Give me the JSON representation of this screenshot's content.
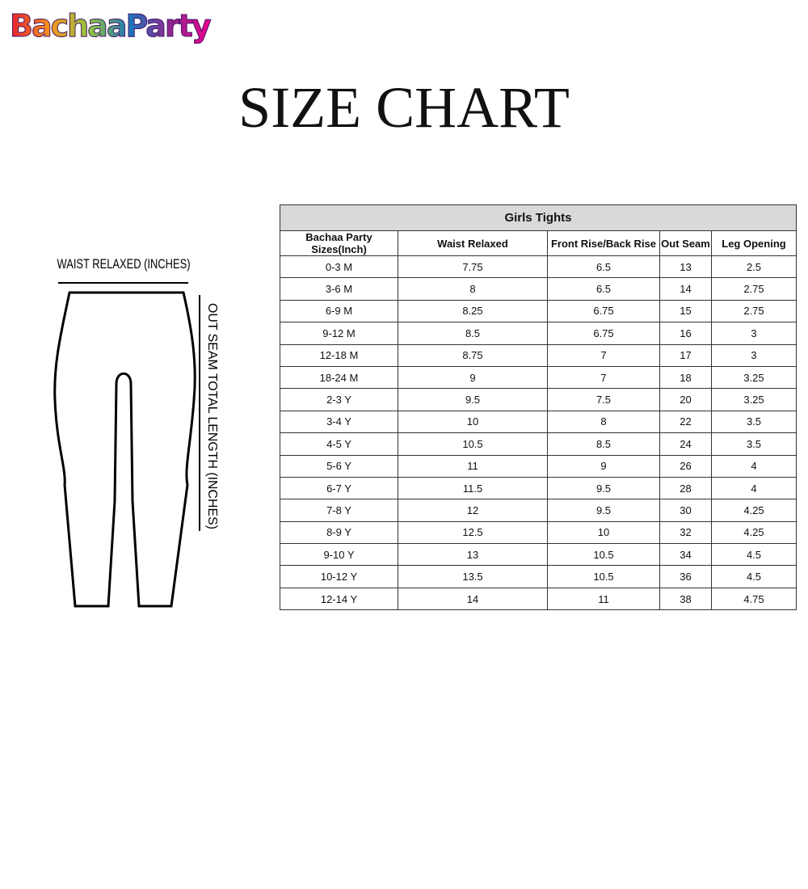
{
  "logo": "BachaaParty",
  "title": "SIZE CHART",
  "diagram": {
    "waist_label": "WAIST RELAXED (INCHES)",
    "length_label": "OUT SEAM TOTAL LENGTH (INCHES)"
  },
  "table": {
    "title": "Girls Tights",
    "headers": [
      "Bachaa Party Sizes(Inch)",
      "Waist Relaxed",
      "Front Rise/Back Rise",
      "Out Seam",
      "Leg Opening"
    ],
    "rows": [
      [
        "0-3 M",
        7.75,
        6.5,
        13,
        2.5
      ],
      [
        "3-6 M",
        8,
        6.5,
        14,
        2.75
      ],
      [
        "6-9 M",
        8.25,
        6.75,
        15,
        2.75
      ],
      [
        "9-12 M",
        8.5,
        6.75,
        16,
        3
      ],
      [
        "12-18 M",
        8.75,
        7,
        17,
        3
      ],
      [
        "18-24 M",
        9,
        7,
        18,
        3.25
      ],
      [
        "2-3 Y",
        9.5,
        7.5,
        20,
        3.25
      ],
      [
        "3-4 Y",
        10,
        8,
        22,
        3.5
      ],
      [
        "4-5 Y",
        10.5,
        8.5,
        24,
        3.5
      ],
      [
        "5-6 Y",
        11,
        9,
        26,
        4
      ],
      [
        "6-7 Y",
        11.5,
        9.5,
        28,
        4
      ],
      [
        "7-8 Y",
        12,
        9.5,
        30,
        4.25
      ],
      [
        "8-9 Y",
        12.5,
        10,
        32,
        4.25
      ],
      [
        "9-10 Y",
        13,
        10.5,
        34,
        4.5
      ],
      [
        "10-12 Y",
        13.5,
        10.5,
        36,
        4.5
      ],
      [
        "12-14 Y",
        14,
        11,
        38,
        4.75
      ]
    ]
  }
}
